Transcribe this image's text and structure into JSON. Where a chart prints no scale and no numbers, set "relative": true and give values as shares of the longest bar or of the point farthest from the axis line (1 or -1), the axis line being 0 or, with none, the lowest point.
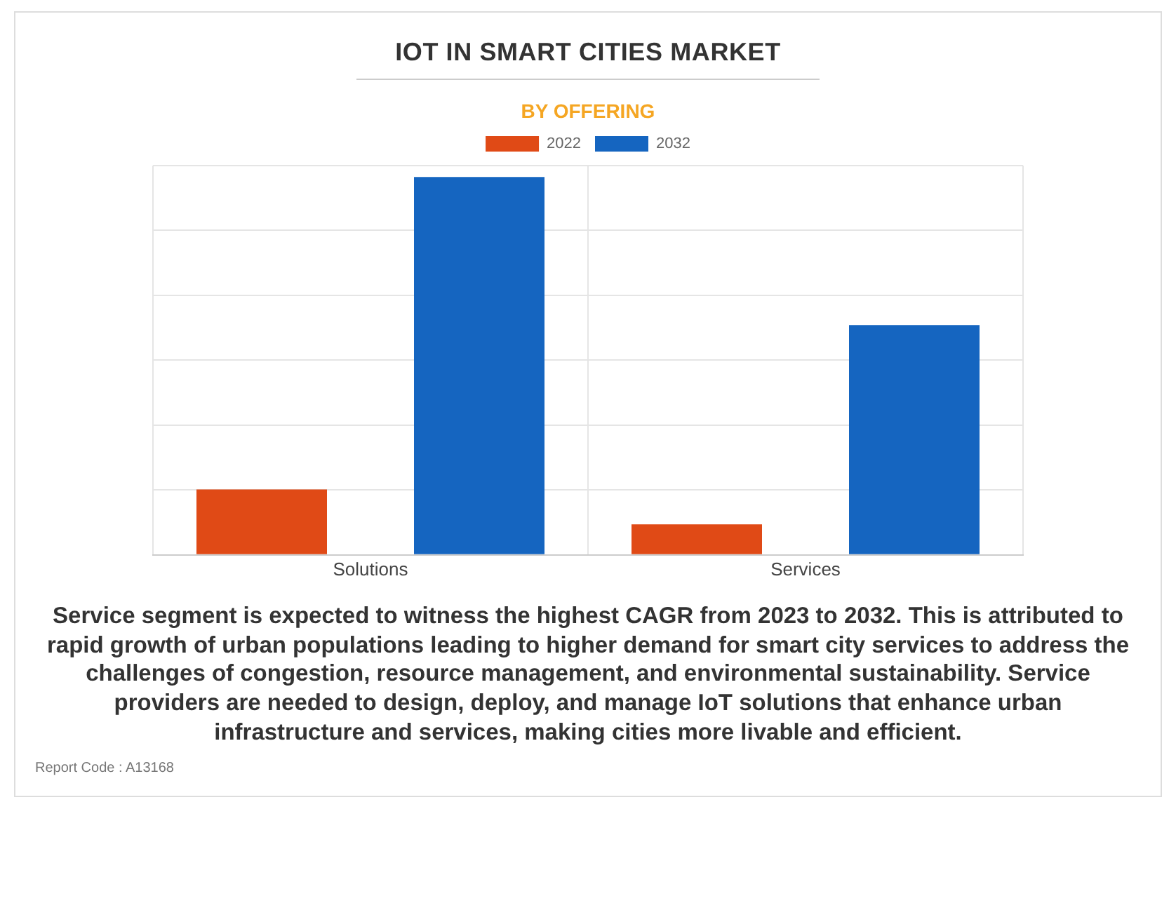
{
  "chart_data": {
    "type": "bar",
    "title": "IOT IN SMART CITIES MARKET",
    "subtitle": "BY OFFERING",
    "categories": [
      "Solutions",
      "Services"
    ],
    "series": [
      {
        "name": "2022",
        "color": "#e04a16",
        "values": [
          0.173,
          0.081
        ]
      },
      {
        "name": "2032",
        "color": "#1565c0",
        "values": [
          1,
          0.608
        ]
      }
    ],
    "relative": true,
    "grid": true,
    "legend": "top",
    "annotations": [
      "Service segment is expected to witness the highest CAGR from 2023 to 2032. This is attributed to rapid growth of urban populations leading to higher demand for smart city services to address the challenges of congestion, resource management, and environmental sustainability. Service providers are needed to design, deploy, and manage IoT solutions that enhance urban infrastructure and services, making cities more livable and efficient.",
      "Report Code : A13168"
    ]
  }
}
